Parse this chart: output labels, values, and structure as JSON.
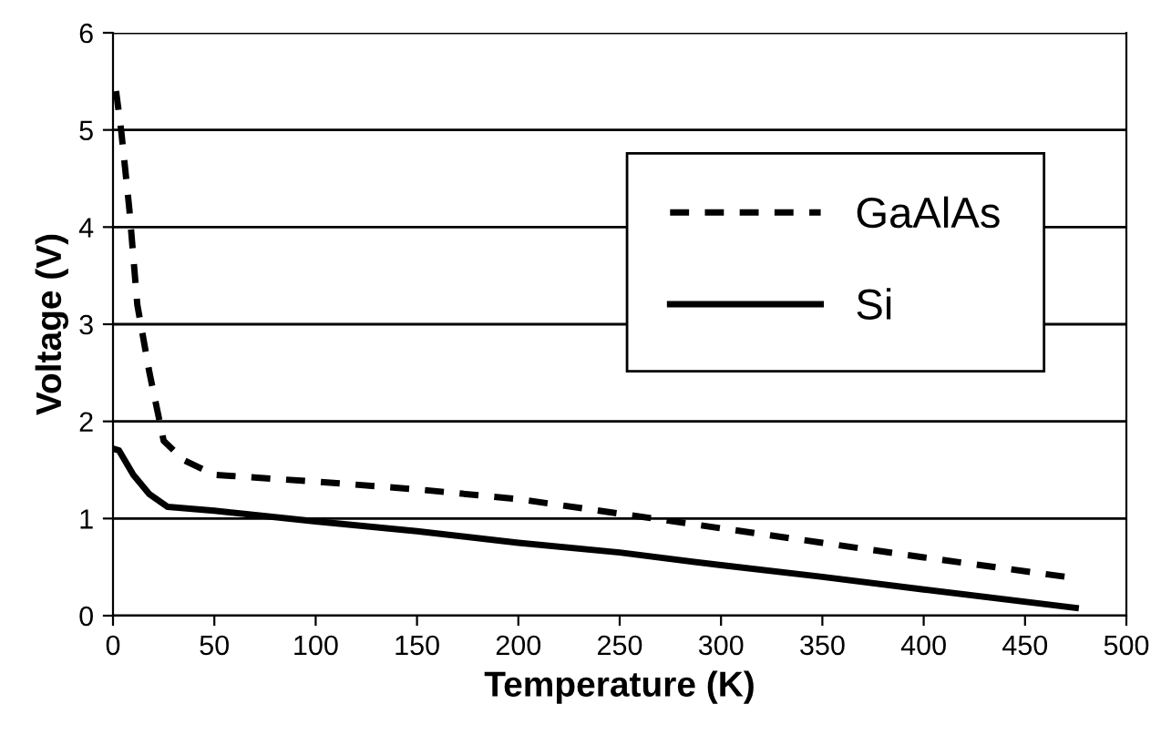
{
  "chart_data": {
    "type": "line",
    "xlabel": "Temperature (K)",
    "ylabel": "Voltage (V)",
    "xlim": [
      0,
      500
    ],
    "xticks": [
      0,
      50,
      100,
      150,
      200,
      250,
      300,
      350,
      400,
      450,
      500
    ],
    "ylim": [
      0,
      6
    ],
    "yticks": [
      0,
      1,
      2,
      3,
      4,
      5,
      6
    ],
    "grid": "y",
    "legend": "top right",
    "marker": "none",
    "series": [
      {
        "name": "GaAlAs",
        "color": "#000000",
        "line_style": "dashed",
        "x": [
          1.5,
          4,
          8,
          12,
          18,
          25,
          35,
          50,
          100,
          150,
          200,
          250,
          300,
          350,
          400,
          470
        ],
        "values": [
          5.4,
          5.0,
          4.2,
          3.2,
          2.5,
          1.8,
          1.6,
          1.45,
          1.38,
          1.3,
          1.2,
          1.05,
          0.9,
          0.75,
          0.6,
          0.4
        ]
      },
      {
        "name": "Si",
        "color": "#000000",
        "line_style": "solid",
        "x": [
          0,
          3,
          10,
          18,
          27,
          50,
          100,
          150,
          200,
          250,
          300,
          350,
          400,
          475
        ],
        "values": [
          1.72,
          1.7,
          1.45,
          1.25,
          1.12,
          1.08,
          0.97,
          0.87,
          0.75,
          0.65,
          0.52,
          0.4,
          0.27,
          0.08
        ]
      }
    ]
  }
}
